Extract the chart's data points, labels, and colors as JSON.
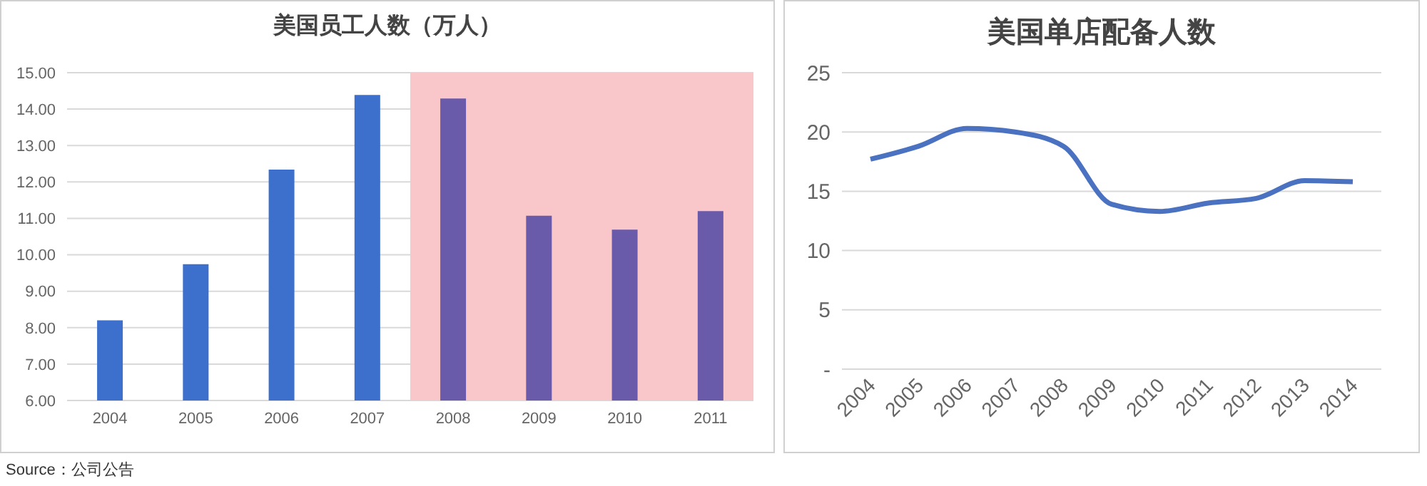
{
  "chart_data": [
    {
      "type": "bar",
      "title": "美国员工人数（万人）",
      "categories": [
        "2004",
        "2005",
        "2006",
        "2007",
        "2008",
        "2009",
        "2010",
        "2011"
      ],
      "values": [
        8.2,
        9.74,
        12.34,
        14.39,
        14.29,
        11.07,
        10.69,
        11.2
      ],
      "colors": [
        "#3d6fcc",
        "#3d6fcc",
        "#3d6fcc",
        "#3d6fcc",
        "#6a5aaa",
        "#6a5aaa",
        "#6a5aaa",
        "#6a5aaa"
      ],
      "ylim": [
        6,
        15
      ],
      "yticks": [
        {
          "value": 6,
          "label": "6.00"
        },
        {
          "value": 7,
          "label": "7.00"
        },
        {
          "value": 8,
          "label": "8.00"
        },
        {
          "value": 9,
          "label": "9.00"
        },
        {
          "value": 10,
          "label": "10.00"
        },
        {
          "value": 11,
          "label": "11.00"
        },
        {
          "value": 12,
          "label": "12.00"
        },
        {
          "value": 13,
          "label": "13.00"
        },
        {
          "value": 14,
          "label": "14.00"
        },
        {
          "value": 15,
          "label": "15.00"
        }
      ],
      "grid": "y",
      "bands": [
        {
          "axis": "x",
          "from": "2008",
          "to": "2011",
          "color": "#f9c6c9"
        }
      ],
      "annotations": [
        "Source：公司公告"
      ]
    },
    {
      "type": "line",
      "title": "美国单店配备人数",
      "categories": [
        "2004",
        "2005",
        "2006",
        "2007",
        "2008",
        "2009",
        "2010",
        "2011",
        "2012",
        "2013",
        "2014"
      ],
      "series": [
        {
          "color": "#4a72c0",
          "values": [
            17.7,
            18.8,
            20.3,
            20.0,
            18.8,
            13.9,
            13.3,
            14.0,
            14.4,
            15.9,
            15.8
          ]
        }
      ],
      "ylim": [
        0,
        25
      ],
      "yticks": [
        {
          "value": 0,
          "label": "-"
        },
        5,
        10,
        15,
        20,
        25
      ],
      "grid": "y",
      "marker": "none",
      "line_style": "solid"
    }
  ]
}
